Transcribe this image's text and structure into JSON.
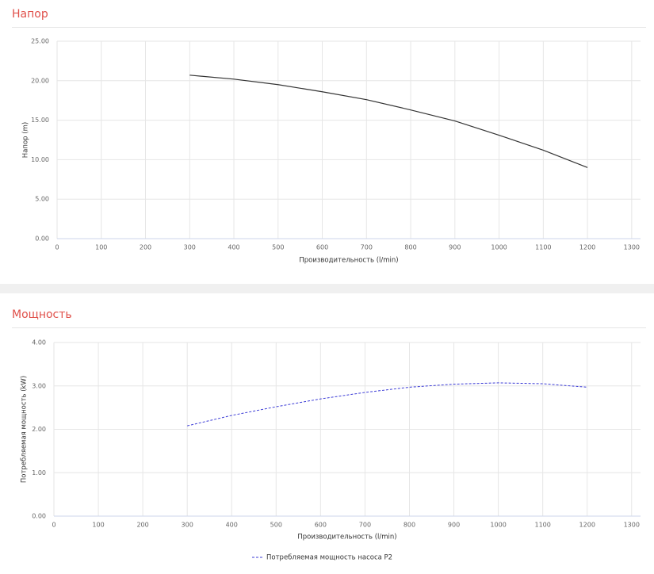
{
  "chart_data": [
    {
      "type": "line",
      "title": "Напор",
      "x_label": "Производительность (l/min)",
      "y_label": "Напор (m)",
      "x": [
        300,
        400,
        500,
        600,
        700,
        800,
        900,
        1000,
        1100,
        1200
      ],
      "series": [
        {
          "color": "#333333",
          "values": [
            20.7,
            20.2,
            19.5,
            18.6,
            17.6,
            16.3,
            14.9,
            13.1,
            11.2,
            9.0
          ]
        }
      ],
      "xlim": [
        0,
        1320
      ],
      "xticks": [
        0,
        100,
        200,
        300,
        400,
        500,
        600,
        700,
        800,
        900,
        1000,
        1100,
        1200,
        1300
      ],
      "ylim": [
        0,
        25
      ],
      "yticks": [
        {
          "value": 0,
          "label": "0.00"
        },
        {
          "value": 5,
          "label": "5.00"
        },
        {
          "value": 10,
          "label": "10.00"
        },
        {
          "value": 15,
          "label": "15.00"
        },
        {
          "value": 20,
          "label": "20.00"
        },
        {
          "value": 25,
          "label": "25.00"
        }
      ],
      "grid": true
    },
    {
      "type": "line",
      "title": "Мощность",
      "x_label": "Производительность (l/min)",
      "y_label": "Потребляемая мощность (kW)",
      "x": [
        300,
        400,
        500,
        600,
        700,
        800,
        900,
        1000,
        1100,
        1200
      ],
      "series": [
        {
          "name": "Потребляемая мощность насоса P2",
          "color": "#3b3bd6",
          "dashed": true,
          "values": [
            2.08,
            2.32,
            2.52,
            2.7,
            2.85,
            2.97,
            3.04,
            3.07,
            3.05,
            2.97
          ]
        }
      ],
      "xlim": [
        0,
        1320
      ],
      "xticks": [
        0,
        100,
        200,
        300,
        400,
        500,
        600,
        700,
        800,
        900,
        1000,
        1100,
        1200,
        1300
      ],
      "ylim": [
        0,
        4
      ],
      "yticks": [
        {
          "value": 0,
          "label": "0.00"
        },
        {
          "value": 1,
          "label": "1.00"
        },
        {
          "value": 2,
          "label": "2.00"
        },
        {
          "value": 3,
          "label": "3.00"
        },
        {
          "value": 4,
          "label": "4.00"
        }
      ],
      "grid": true,
      "legend": "bottom"
    }
  ]
}
